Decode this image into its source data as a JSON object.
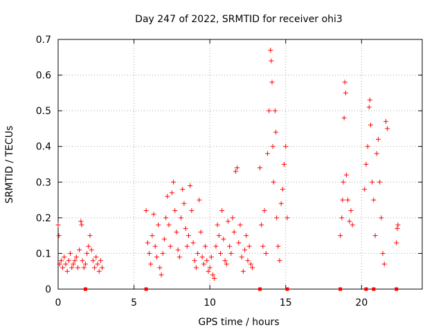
{
  "chart_data": {
    "type": "scatter",
    "title": "Day 247 of 2022, SRMTID for receiver ohi3",
    "xlabel": "GPS time / hours",
    "ylabel": "SRMTID / TECUs",
    "xlim": [
      0,
      24
    ],
    "ylim": [
      0,
      0.7
    ],
    "xticks": [
      0,
      5,
      10,
      15,
      20
    ],
    "yticks": [
      0,
      0.1,
      0.2,
      0.3,
      0.4,
      0.5,
      0.6,
      0.7
    ],
    "grid": true,
    "marker": "+",
    "color": "#ff0000",
    "series": [
      {
        "name": "SRMTID",
        "points": [
          [
            0.0,
            0.18
          ],
          [
            0.05,
            0.15
          ],
          [
            0.1,
            0.07
          ],
          [
            0.2,
            0.08
          ],
          [
            0.3,
            0.06
          ],
          [
            0.4,
            0.09
          ],
          [
            0.5,
            0.07
          ],
          [
            0.6,
            0.05
          ],
          [
            0.7,
            0.08
          ],
          [
            0.8,
            0.1
          ],
          [
            0.9,
            0.06
          ],
          [
            1.0,
            0.07
          ],
          [
            1.1,
            0.08
          ],
          [
            1.2,
            0.09
          ],
          [
            1.3,
            0.06
          ],
          [
            1.4,
            0.11
          ],
          [
            1.5,
            0.19
          ],
          [
            1.55,
            0.18
          ],
          [
            1.6,
            0.08
          ],
          [
            1.7,
            0.06
          ],
          [
            1.8,
            0.07
          ],
          [
            1.9,
            0.1
          ],
          [
            2.0,
            0.12
          ],
          [
            2.1,
            0.15
          ],
          [
            2.2,
            0.11
          ],
          [
            2.3,
            0.08
          ],
          [
            2.4,
            0.06
          ],
          [
            2.5,
            0.09
          ],
          [
            2.6,
            0.07
          ],
          [
            2.7,
            0.05
          ],
          [
            2.8,
            0.08
          ],
          [
            2.9,
            0.06
          ],
          [
            5.8,
            0.22
          ],
          [
            5.9,
            0.13
          ],
          [
            6.0,
            0.1
          ],
          [
            6.1,
            0.07
          ],
          [
            6.2,
            0.15
          ],
          [
            6.3,
            0.21
          ],
          [
            6.4,
            0.12
          ],
          [
            6.5,
            0.09
          ],
          [
            6.6,
            0.18
          ],
          [
            6.7,
            0.06
          ],
          [
            6.8,
            0.04
          ],
          [
            6.9,
            0.1
          ],
          [
            7.0,
            0.14
          ],
          [
            7.1,
            0.2
          ],
          [
            7.2,
            0.26
          ],
          [
            7.3,
            0.18
          ],
          [
            7.4,
            0.12
          ],
          [
            7.5,
            0.27
          ],
          [
            7.6,
            0.3
          ],
          [
            7.7,
            0.22
          ],
          [
            7.8,
            0.16
          ],
          [
            7.9,
            0.11
          ],
          [
            8.0,
            0.09
          ],
          [
            8.1,
            0.2
          ],
          [
            8.2,
            0.28
          ],
          [
            8.3,
            0.24
          ],
          [
            8.4,
            0.17
          ],
          [
            8.5,
            0.12
          ],
          [
            8.6,
            0.15
          ],
          [
            8.7,
            0.29
          ],
          [
            8.8,
            0.22
          ],
          [
            8.9,
            0.13
          ],
          [
            9.0,
            0.08
          ],
          [
            9.1,
            0.06
          ],
          [
            9.2,
            0.1
          ],
          [
            9.3,
            0.25
          ],
          [
            9.4,
            0.16
          ],
          [
            9.5,
            0.09
          ],
          [
            9.6,
            0.07
          ],
          [
            9.7,
            0.12
          ],
          [
            9.8,
            0.08
          ],
          [
            9.9,
            0.05
          ],
          [
            10.0,
            0.06
          ],
          [
            10.1,
            0.09
          ],
          [
            10.2,
            0.04
          ],
          [
            10.3,
            0.03
          ],
          [
            10.4,
            0.12
          ],
          [
            10.5,
            0.18
          ],
          [
            10.6,
            0.15
          ],
          [
            10.7,
            0.1
          ],
          [
            10.8,
            0.22
          ],
          [
            10.9,
            0.14
          ],
          [
            11.0,
            0.08
          ],
          [
            11.1,
            0.07
          ],
          [
            11.2,
            0.19
          ],
          [
            11.3,
            0.12
          ],
          [
            11.4,
            0.1
          ],
          [
            11.5,
            0.2
          ],
          [
            11.6,
            0.16
          ],
          [
            11.7,
            0.33
          ],
          [
            11.8,
            0.34
          ],
          [
            11.9,
            0.13
          ],
          [
            12.0,
            0.18
          ],
          [
            12.1,
            0.09
          ],
          [
            12.2,
            0.05
          ],
          [
            12.3,
            0.11
          ],
          [
            12.4,
            0.15
          ],
          [
            12.5,
            0.08
          ],
          [
            12.6,
            0.12
          ],
          [
            12.7,
            0.07
          ],
          [
            12.8,
            0.06
          ],
          [
            13.3,
            0.34
          ],
          [
            13.4,
            0.18
          ],
          [
            13.5,
            0.12
          ],
          [
            13.6,
            0.22
          ],
          [
            13.7,
            0.1
          ],
          [
            13.8,
            0.38
          ],
          [
            13.9,
            0.5
          ],
          [
            14.0,
            0.67
          ],
          [
            14.05,
            0.64
          ],
          [
            14.1,
            0.58
          ],
          [
            14.15,
            0.4
          ],
          [
            14.2,
            0.3
          ],
          [
            14.3,
            0.5
          ],
          [
            14.35,
            0.44
          ],
          [
            14.4,
            0.2
          ],
          [
            14.5,
            0.12
          ],
          [
            14.6,
            0.08
          ],
          [
            14.7,
            0.24
          ],
          [
            14.8,
            0.28
          ],
          [
            14.9,
            0.35
          ],
          [
            15.0,
            0.4
          ],
          [
            15.1,
            0.2
          ],
          [
            18.6,
            0.15
          ],
          [
            18.7,
            0.2
          ],
          [
            18.75,
            0.25
          ],
          [
            18.8,
            0.3
          ],
          [
            18.85,
            0.48
          ],
          [
            18.9,
            0.58
          ],
          [
            18.95,
            0.55
          ],
          [
            19.0,
            0.32
          ],
          [
            19.1,
            0.25
          ],
          [
            19.2,
            0.19
          ],
          [
            19.3,
            0.22
          ],
          [
            19.4,
            0.18
          ],
          [
            20.2,
            0.28
          ],
          [
            20.3,
            0.35
          ],
          [
            20.4,
            0.4
          ],
          [
            20.5,
            0.51
          ],
          [
            20.55,
            0.53
          ],
          [
            20.6,
            0.46
          ],
          [
            20.7,
            0.3
          ],
          [
            20.8,
            0.25
          ],
          [
            20.9,
            0.15
          ],
          [
            21.0,
            0.38
          ],
          [
            21.1,
            0.42
          ],
          [
            21.2,
            0.3
          ],
          [
            21.3,
            0.2
          ],
          [
            21.4,
            0.1
          ],
          [
            21.5,
            0.07
          ],
          [
            21.6,
            0.47
          ],
          [
            21.7,
            0.45
          ],
          [
            22.3,
            0.13
          ],
          [
            22.35,
            0.17
          ],
          [
            22.4,
            0.18
          ]
        ]
      }
    ],
    "axis_markers_x": [
      1.8,
      5.8,
      13.3,
      15.1,
      18.6,
      20.3,
      20.8,
      22.3
    ]
  }
}
